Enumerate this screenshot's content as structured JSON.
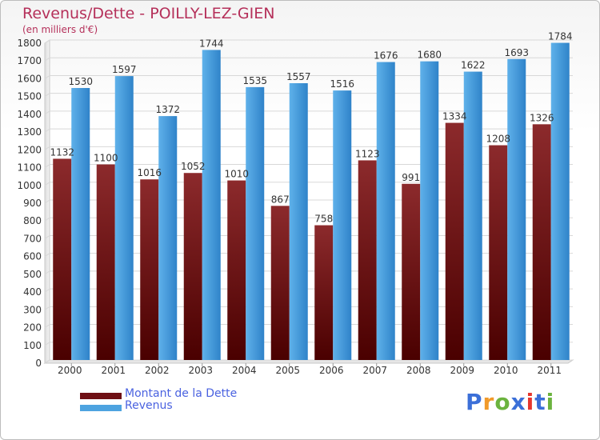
{
  "header": {
    "title": "Revenus/Dette - POILLY-LEZ-GIEN",
    "subtitle": "(en milliers d'€)"
  },
  "legend": {
    "items": [
      {
        "label": "Montant de la Dette",
        "color": "#6e0f14"
      },
      {
        "label": "Revenus",
        "color": "#4da3e0"
      }
    ]
  },
  "logo": {
    "text": "Proxiti",
    "colors": [
      "#3b6fd8",
      "#f19a2a",
      "#6bb33e",
      "#3b6fd8",
      "#e6362e",
      "#3b6fd8",
      "#6bb33e"
    ]
  },
  "chart_data": {
    "type": "bar",
    "title": "Revenus/Dette - POILLY-LEZ-GIEN",
    "subtitle": "(en milliers d'€)",
    "categories": [
      "2000",
      "2001",
      "2002",
      "2003",
      "2004",
      "2005",
      "2006",
      "2007",
      "2008",
      "2009",
      "2010",
      "2011"
    ],
    "series": [
      {
        "name": "Montant de la Dette",
        "color": "#6e0f14",
        "values": [
          1132,
          1100,
          1016,
          1052,
          1010,
          867,
          758,
          1123,
          991,
          1334,
          1208,
          1326
        ]
      },
      {
        "name": "Revenus",
        "color": "#4da3e0",
        "values": [
          1530,
          1597,
          1372,
          1744,
          1535,
          1557,
          1516,
          1676,
          1680,
          1622,
          1693,
          1784
        ]
      }
    ],
    "ylim": [
      0,
      1800
    ],
    "ytick_step": 100,
    "grid": true,
    "legend_position": "bottom-left"
  }
}
